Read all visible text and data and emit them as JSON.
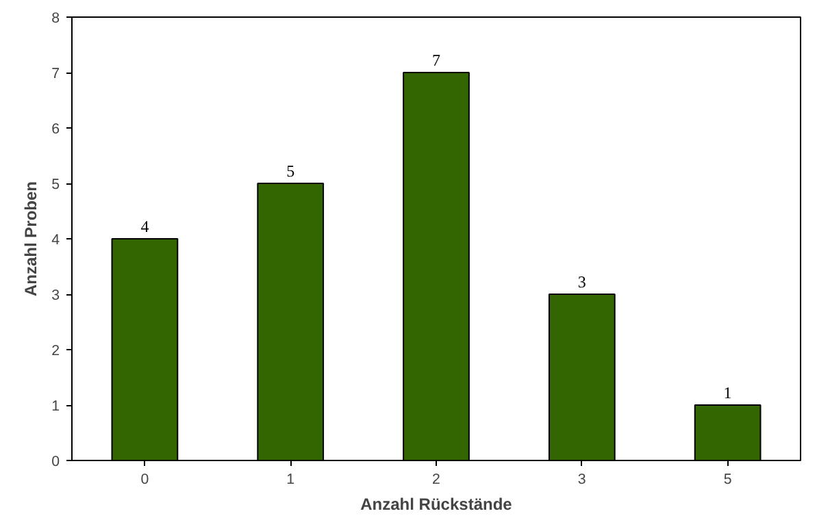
{
  "chart_data": {
    "type": "bar",
    "xlabel": "Anzahl Rückstände",
    "ylabel": "Anzahl Proben",
    "categories": [
      "0",
      "1",
      "2",
      "3",
      "5"
    ],
    "values": [
      4,
      5,
      7,
      3,
      1
    ],
    "color": "#336600",
    "ylim": [
      0,
      8
    ],
    "yticks": [
      0,
      1,
      2,
      3,
      4,
      5,
      6,
      7,
      8
    ],
    "grid": false,
    "data_labels": true
  }
}
